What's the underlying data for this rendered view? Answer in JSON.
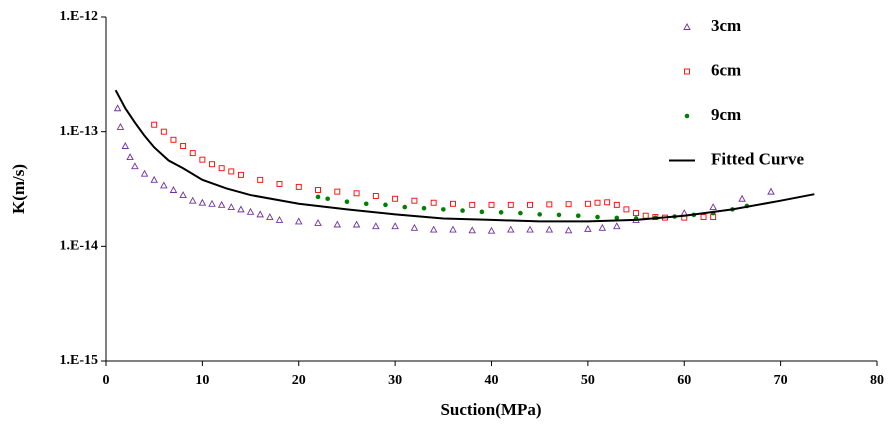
{
  "chart_data": {
    "type": "scatter",
    "x_label": "Suction(MPa)",
    "y_label": "K(m/s)",
    "y_log": true,
    "xlim": [
      0,
      80
    ],
    "xticks": [
      0,
      10,
      20,
      30,
      40,
      50,
      60,
      70,
      80
    ],
    "ylim": [
      1e-15,
      1e-12
    ],
    "yticks": [
      {
        "value": 1e-15,
        "label": "1.E-15"
      },
      {
        "value": 1e-14,
        "label": "1.E-14"
      },
      {
        "value": 1e-13,
        "label": "1.E-13"
      },
      {
        "value": 1e-12,
        "label": "1.E-12"
      }
    ],
    "legend": "top-right",
    "series": [
      {
        "name": "3cm",
        "marker": "triangle",
        "color": "#7030a0",
        "x": [
          1.2,
          1.5,
          2,
          2.5,
          3,
          4,
          5,
          6,
          7,
          8,
          9,
          10,
          11,
          12,
          13,
          14,
          15,
          16,
          17,
          18,
          20,
          22,
          24,
          26,
          28,
          30,
          32,
          34,
          36,
          38,
          40,
          42,
          44,
          46,
          48,
          50,
          51.5,
          53,
          55,
          60,
          63,
          66,
          69
        ],
        "values": [
          1.6e-13,
          1.1e-13,
          7.5e-14,
          6e-14,
          5e-14,
          4.3e-14,
          3.8e-14,
          3.4e-14,
          3.1e-14,
          2.8e-14,
          2.5e-14,
          2.4e-14,
          2.35e-14,
          2.3e-14,
          2.2e-14,
          2.1e-14,
          2e-14,
          1.9e-14,
          1.8e-14,
          1.7e-14,
          1.65e-14,
          1.6e-14,
          1.55e-14,
          1.55e-14,
          1.5e-14,
          1.5e-14,
          1.45e-14,
          1.4e-14,
          1.4e-14,
          1.38e-14,
          1.37e-14,
          1.4e-14,
          1.4e-14,
          1.4e-14,
          1.38e-14,
          1.42e-14,
          1.45e-14,
          1.5e-14,
          1.7e-14,
          1.95e-14,
          2.2e-14,
          2.6e-14,
          3e-14
        ]
      },
      {
        "name": "6cm",
        "marker": "square",
        "color": "#ff0000",
        "x": [
          5,
          6,
          7,
          8,
          9,
          10,
          11,
          12,
          13,
          14,
          16,
          18,
          20,
          22,
          24,
          26,
          28,
          30,
          32,
          34,
          36,
          38,
          40,
          42,
          44,
          46,
          48,
          50,
          51,
          52,
          53,
          54,
          55,
          56,
          57,
          58,
          60,
          62,
          63
        ],
        "values": [
          1.15e-13,
          1e-13,
          8.5e-14,
          7.5e-14,
          6.5e-14,
          5.7e-14,
          5.2e-14,
          4.8e-14,
          4.5e-14,
          4.2e-14,
          3.8e-14,
          3.5e-14,
          3.3e-14,
          3.1e-14,
          3e-14,
          2.9e-14,
          2.75e-14,
          2.6e-14,
          2.5e-14,
          2.4e-14,
          2.35e-14,
          2.3e-14,
          2.3e-14,
          2.3e-14,
          2.3e-14,
          2.32e-14,
          2.33e-14,
          2.35e-14,
          2.4e-14,
          2.42e-14,
          2.3e-14,
          2.1e-14,
          1.95e-14,
          1.85e-14,
          1.8e-14,
          1.78e-14,
          1.78e-14,
          1.8e-14,
          1.8e-14
        ]
      },
      {
        "name": "9cm",
        "marker": "circle",
        "color": "#008000",
        "x": [
          22,
          23,
          25,
          27,
          29,
          31,
          33,
          35,
          37,
          39,
          41,
          43,
          45,
          47,
          49,
          51,
          53,
          55,
          57,
          59,
          61,
          63,
          65,
          66.5
        ],
        "values": [
          2.7e-14,
          2.6e-14,
          2.45e-14,
          2.35e-14,
          2.3e-14,
          2.2e-14,
          2.15e-14,
          2.1e-14,
          2.05e-14,
          2e-14,
          1.98e-14,
          1.95e-14,
          1.9e-14,
          1.88e-14,
          1.85e-14,
          1.8e-14,
          1.77e-14,
          1.75e-14,
          1.78e-14,
          1.82e-14,
          1.88e-14,
          1.95e-14,
          2.1e-14,
          2.25e-14
        ]
      },
      {
        "name": "Fitted Curve",
        "marker": "line",
        "color": "#000000",
        "x": [
          1,
          2,
          3,
          4,
          5,
          6.5,
          8,
          10,
          12.5,
          15,
          20,
          25,
          30,
          35,
          40,
          45,
          50,
          55,
          60,
          65,
          70,
          73.5
        ],
        "values": [
          2.3e-13,
          1.6e-13,
          1.2e-13,
          9.2e-14,
          7.3e-14,
          5.6e-14,
          4.8e-14,
          3.8e-14,
          3.2e-14,
          2.8e-14,
          2.35e-14,
          2.1e-14,
          1.9e-14,
          1.75e-14,
          1.7e-14,
          1.65e-14,
          1.65e-14,
          1.7e-14,
          1.85e-14,
          2.1e-14,
          2.5e-14,
          2.85e-14
        ]
      }
    ]
  }
}
